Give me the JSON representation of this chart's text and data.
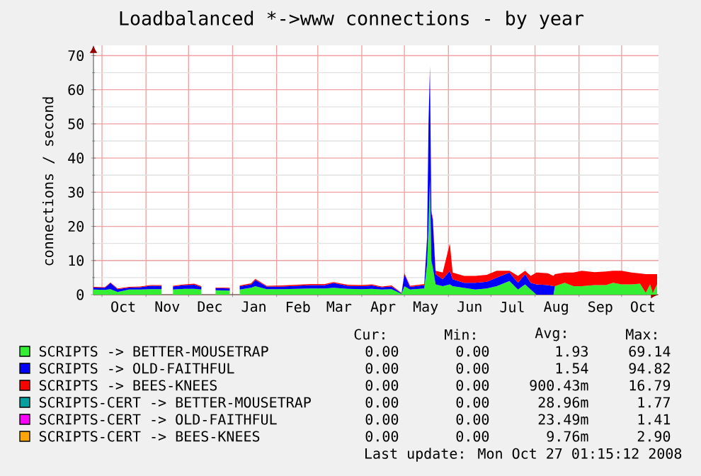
{
  "chart_data": {
    "type": "area",
    "stacked": true,
    "title": "Loadbalanced *->www connections - by year",
    "ylabel": "connections / second",
    "x": [
      "2007-09-25",
      "2007-10-03",
      "2007-10-07",
      "2007-10-12",
      "2007-10-20",
      "2007-10-28",
      "2007-11-04",
      "2007-11-12",
      "2007-11-17",
      "2007-11-20",
      "2007-11-28",
      "2007-12-05",
      "2007-12-10",
      "2007-12-14",
      "2007-12-20",
      "2007-12-30",
      "2008-01-03",
      "2008-01-06",
      "2008-01-14",
      "2008-01-17",
      "2008-01-25",
      "2008-02-05",
      "2008-02-15",
      "2008-02-25",
      "2008-03-06",
      "2008-03-12",
      "2008-03-22",
      "2008-04-01",
      "2008-04-08",
      "2008-04-15",
      "2008-04-22",
      "2008-04-29",
      "2008-05-01",
      "2008-05-05",
      "2008-05-15",
      "2008-05-17",
      "2008-05-18",
      "2008-05-19",
      "2008-05-20",
      "2008-05-21",
      "2008-05-23",
      "2008-05-28",
      "2008-06-02",
      "2008-06-04",
      "2008-06-12",
      "2008-06-20",
      "2008-06-28",
      "2008-07-05",
      "2008-07-14",
      "2008-07-20",
      "2008-07-25",
      "2008-07-29",
      "2008-08-02",
      "2008-08-10",
      "2008-08-14",
      "2008-08-15",
      "2008-08-22",
      "2008-08-28",
      "2008-09-03",
      "2008-09-12",
      "2008-09-20",
      "2008-09-25",
      "2008-10-01",
      "2008-10-08",
      "2008-10-14",
      "2008-10-18",
      "2008-10-21",
      "2008-10-23",
      "2008-10-26"
    ],
    "series": [
      {
        "name": "SCRIPTS -> BETTER-MOUSETRAP",
        "color": "#33ee33",
        "values": [
          1.5,
          1.4,
          1.6,
          0.8,
          1.5,
          1.5,
          1.6,
          1.6,
          null,
          1.5,
          1.7,
          1.7,
          1.5,
          null,
          1.3,
          1.2,
          null,
          1.5,
          2.0,
          2.5,
          1.6,
          1.6,
          1.7,
          1.8,
          1.8,
          2.0,
          1.7,
          1.6,
          1.7,
          1.5,
          1.6,
          0.2,
          2.5,
          1.5,
          1.8,
          8.9,
          20,
          33.7,
          10,
          8,
          3,
          2.5,
          3,
          2.5,
          2,
          1.5,
          1.8,
          2.5,
          4,
          1.5,
          3,
          1.5,
          0,
          0,
          0,
          2.5,
          3.5,
          2.5,
          2.5,
          2.8,
          2.8,
          3.5,
          3,
          3,
          3.2,
          0.5,
          3,
          0.5,
          3
        ]
      },
      {
        "name": "SCRIPTS -> OLD-FAITHFUL",
        "color": "#0000ff",
        "values": [
          0.6,
          0.6,
          1.8,
          0.8,
          0.6,
          0.7,
          1.0,
          1.0,
          null,
          0.9,
          1.1,
          1.2,
          0.8,
          null,
          0.6,
          0.6,
          null,
          1.0,
          1.0,
          1.8,
          0.8,
          0.8,
          0.9,
          1.0,
          1.0,
          1.4,
          0.9,
          0.9,
          1.0,
          0.7,
          0.8,
          0.2,
          3.5,
          0.8,
          1.0,
          7.8,
          30,
          32.8,
          14,
          14,
          3,
          2,
          4,
          2,
          1.5,
          2,
          2,
          2.5,
          2.5,
          2,
          3,
          2,
          3,
          2.8,
          2.5,
          0,
          0,
          0,
          0,
          0,
          0,
          0,
          0,
          0,
          0,
          0,
          0,
          0,
          0
        ]
      },
      {
        "name": "SCRIPTS -> BEES-KNEES",
        "color": "#ff0000",
        "values": [
          0.2,
          0.2,
          0.2,
          0.2,
          0.2,
          0.2,
          0.2,
          0.2,
          null,
          0.2,
          0.2,
          0.3,
          0.2,
          null,
          0.2,
          0.2,
          null,
          0.2,
          0.3,
          0.3,
          0.2,
          0.3,
          0.3,
          0.3,
          0.3,
          0.3,
          0.3,
          0.3,
          0.3,
          0.2,
          0.3,
          0.1,
          0.3,
          0.3,
          0.3,
          0.3,
          0.5,
          0.5,
          0.5,
          0.5,
          1,
          2,
          8,
          2,
          2,
          2,
          2,
          2,
          0.5,
          2,
          1,
          2,
          3.5,
          3.5,
          3,
          3.5,
          3,
          4,
          4.5,
          3.8,
          4,
          3.5,
          4,
          3.5,
          3,
          5.5,
          3,
          5.5,
          3
        ]
      },
      {
        "name": "SCRIPTS-CERT -> BETTER-MOUSETRAP",
        "color": "#00a0a0",
        "values": [
          null,
          null,
          null,
          null,
          null,
          null,
          null,
          null,
          null,
          null,
          null,
          null,
          null,
          null,
          null,
          null,
          null,
          null,
          null,
          null,
          null,
          null,
          null,
          null,
          null,
          null,
          null,
          null,
          null,
          null,
          null,
          null,
          null,
          null,
          null,
          null,
          null,
          null,
          null,
          null,
          null,
          null,
          null,
          null,
          null,
          null,
          null,
          null,
          null,
          null,
          null,
          null,
          null,
          null,
          null,
          null,
          null,
          null,
          null,
          null,
          null,
          null,
          null,
          null,
          null,
          null,
          null,
          null,
          null
        ]
      },
      {
        "name": "SCRIPTS-CERT -> OLD-FAITHFUL",
        "color": "#ff00ff",
        "values": [
          null,
          null,
          null,
          null,
          null,
          null,
          null,
          null,
          null,
          null,
          null,
          null,
          null,
          null,
          null,
          null,
          null,
          null,
          null,
          null,
          null,
          null,
          null,
          null,
          null,
          null,
          null,
          null,
          null,
          null,
          null,
          null,
          null,
          null,
          null,
          null,
          null,
          null,
          null,
          null,
          null,
          null,
          null,
          null,
          null,
          null,
          null,
          null,
          null,
          null,
          null,
          null,
          null,
          null,
          null,
          null,
          null,
          null,
          null,
          null,
          null,
          null,
          null,
          null,
          null,
          null,
          null,
          null,
          null
        ]
      },
      {
        "name": "SCRIPTS-CERT -> BEES-KNEES",
        "color": "#ffa500",
        "values": [
          null,
          null,
          null,
          null,
          null,
          null,
          null,
          null,
          null,
          null,
          null,
          null,
          null,
          null,
          null,
          null,
          null,
          null,
          null,
          null,
          null,
          null,
          null,
          null,
          null,
          null,
          null,
          null,
          null,
          null,
          null,
          null,
          null,
          null,
          null,
          null,
          null,
          null,
          null,
          null,
          null,
          null,
          null,
          null,
          null,
          null,
          null,
          null,
          null,
          null,
          null,
          null,
          null,
          null,
          null,
          null,
          null,
          null,
          null,
          null,
          null,
          null,
          null,
          null,
          null,
          null,
          null,
          null,
          null
        ]
      }
    ],
    "xlim": [
      "2007-09-25",
      "2008-10-27"
    ],
    "xticks": [
      {
        "value": "2007-10-01",
        "label": null
      },
      {
        "value": "2007-11-01",
        "label": null
      },
      {
        "value": "2007-12-01",
        "label": null
      },
      {
        "value": "2008-01-01",
        "label": null
      },
      {
        "value": "2008-02-01",
        "label": null
      },
      {
        "value": "2008-03-01",
        "label": null
      },
      {
        "value": "2008-04-01",
        "label": null
      },
      {
        "value": "2008-05-01",
        "label": null
      },
      {
        "value": "2008-06-01",
        "label": null
      },
      {
        "value": "2008-07-01",
        "label": null
      },
      {
        "value": "2008-08-01",
        "label": null
      },
      {
        "value": "2008-09-01",
        "label": null
      },
      {
        "value": "2008-10-01",
        "label": null
      },
      {
        "value": "2007-10-16",
        "label": "Oct"
      },
      {
        "value": "2007-11-16",
        "label": "Nov"
      },
      {
        "value": "2007-12-16",
        "label": "Dec"
      },
      {
        "value": "2008-01-16",
        "label": "Jan"
      },
      {
        "value": "2008-02-16",
        "label": "Feb"
      },
      {
        "value": "2008-03-16",
        "label": "Mar"
      },
      {
        "value": "2008-04-16",
        "label": "Apr"
      },
      {
        "value": "2008-05-16",
        "label": "May"
      },
      {
        "value": "2008-06-16",
        "label": "Jun"
      },
      {
        "value": "2008-07-16",
        "label": "Jul"
      },
      {
        "value": "2008-08-16",
        "label": "Aug"
      },
      {
        "value": "2008-09-16",
        "label": "Sep"
      },
      {
        "value": "2008-10-16",
        "label": "Oct"
      }
    ],
    "ylim": [
      0,
      73
    ],
    "yticks": [
      0,
      10,
      20,
      30,
      40,
      50,
      60,
      70,
      {
        "value": 5,
        "label": null
      },
      {
        "value": 15,
        "label": null
      },
      {
        "value": 25,
        "label": null
      },
      {
        "value": 35,
        "label": null
      },
      {
        "value": 45,
        "label": null
      },
      {
        "value": 55,
        "label": null
      },
      {
        "value": 65,
        "label": null
      }
    ],
    "grid": true,
    "legend": "bottom",
    "annotations": [
      "Cur:",
      "Min:",
      "Avg:",
      "Max:",
      "0.00",
      "0.00",
      "1.93",
      "69.14",
      "0.00",
      "0.00",
      "1.54",
      "94.82",
      "0.00",
      "0.00",
      "900.43m",
      "16.79",
      "0.00",
      "0.00",
      "28.96m",
      "1.77",
      "0.00",
      "0.00",
      "23.49m",
      "1.41",
      "0.00",
      "0.00",
      "9.76m",
      "2.90",
      "Last update: Mon Oct 27 01:15:12 2008"
    ]
  }
}
